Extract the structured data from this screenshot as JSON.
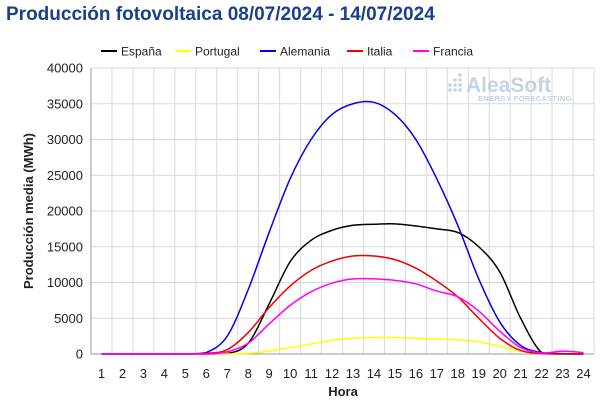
{
  "chart_data": {
    "type": "line",
    "title": "Producción fotovoltaica 08/07/2024 - 14/07/2024",
    "xlabel": "Hora",
    "ylabel": "Producción media (MWh)",
    "ylim": [
      0,
      40000
    ],
    "yticks": [
      0,
      5000,
      10000,
      15000,
      20000,
      25000,
      30000,
      35000,
      40000
    ],
    "x": [
      1,
      2,
      3,
      4,
      5,
      6,
      7,
      8,
      9,
      10,
      11,
      12,
      13,
      14,
      15,
      16,
      17,
      18,
      19,
      20,
      21,
      22,
      23,
      24
    ],
    "grid": true,
    "legend_position": "top",
    "watermark": {
      "main": "AleaSoft",
      "sub": "ENERGY FORECASTING"
    },
    "series": [
      {
        "name": "España",
        "color": "#000000",
        "values": [
          0,
          0,
          0,
          0,
          0,
          0,
          50,
          1500,
          7000,
          12900,
          15900,
          17300,
          18000,
          18150,
          18200,
          17900,
          17500,
          17000,
          15000,
          11500,
          5000,
          200,
          0,
          0
        ]
      },
      {
        "name": "Portugal",
        "color": "#ffff00",
        "values": [
          0,
          0,
          0,
          0,
          0,
          0,
          0,
          100,
          400,
          900,
          1400,
          1900,
          2200,
          2300,
          2300,
          2200,
          2100,
          2000,
          1700,
          1100,
          400,
          50,
          0,
          0
        ]
      },
      {
        "name": "Alemania",
        "color": "#0000ee",
        "values": [
          0,
          0,
          0,
          0,
          0,
          200,
          2500,
          9000,
          17000,
          24500,
          30000,
          33500,
          35000,
          35200,
          33500,
          30000,
          24500,
          18000,
          10500,
          4500,
          1200,
          200,
          50,
          0
        ]
      },
      {
        "name": "Italia",
        "color": "#ee0000",
        "values": [
          0,
          0,
          0,
          0,
          0,
          100,
          600,
          3000,
          6500,
          9500,
          11700,
          13000,
          13700,
          13700,
          13200,
          12000,
          10200,
          8000,
          5000,
          2200,
          500,
          50,
          0,
          0
        ]
      },
      {
        "name": "Francia",
        "color": "#ff00ff",
        "values": [
          0,
          0,
          0,
          0,
          0,
          0,
          300,
          1500,
          4200,
          6800,
          8700,
          9900,
          10500,
          10500,
          10300,
          9800,
          8800,
          8000,
          6000,
          3200,
          900,
          150,
          400,
          200
        ]
      }
    ]
  }
}
